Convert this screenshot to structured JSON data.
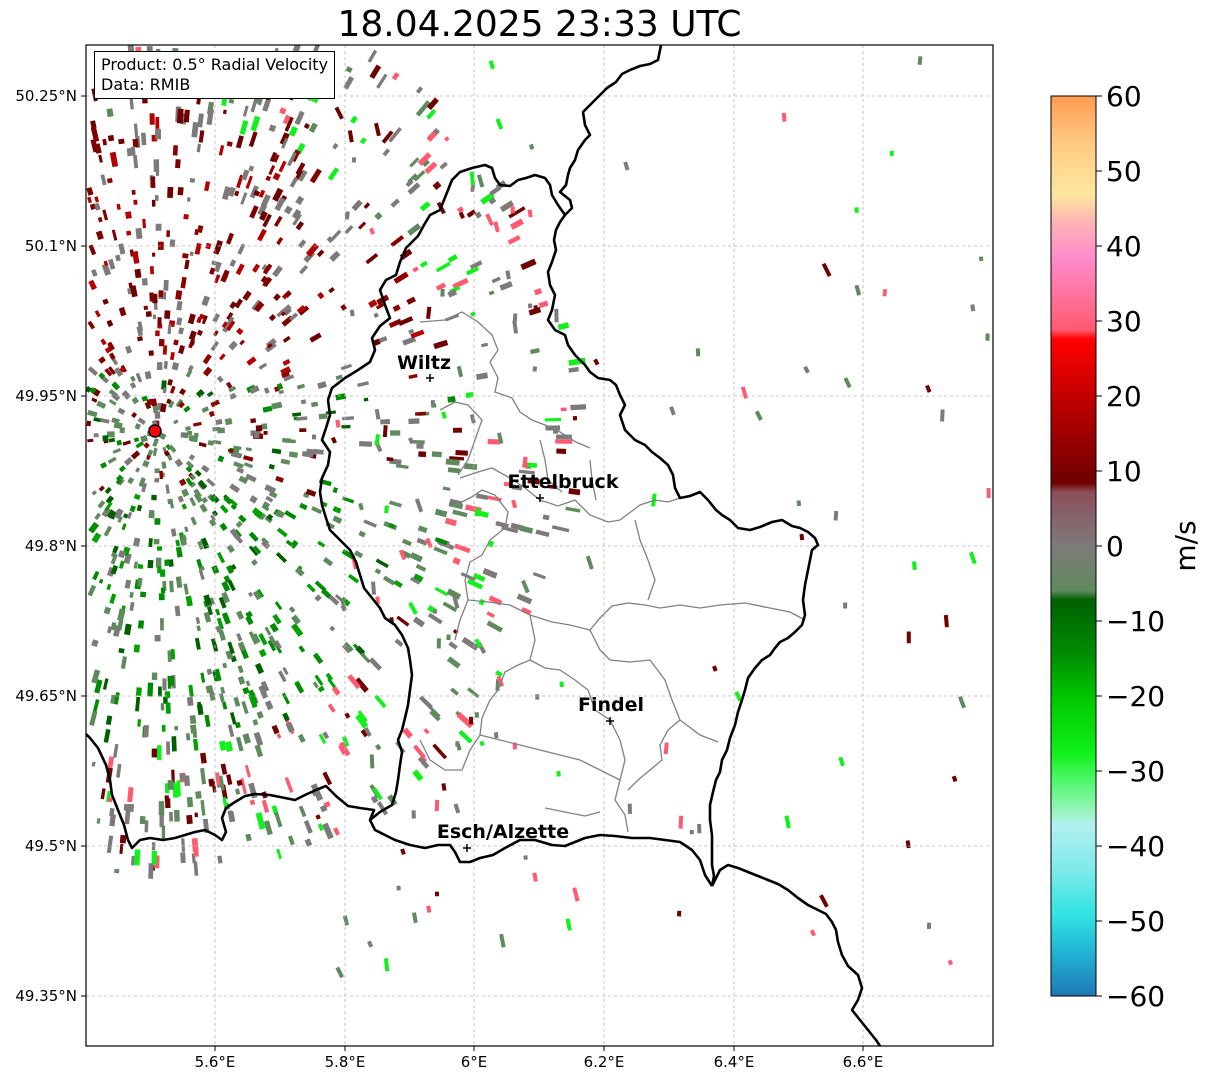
{
  "title": "18.04.2025 23:33 UTC",
  "info": {
    "product": "Product: 0.5° Radial Velocity",
    "data": "Data: RMIB"
  },
  "map": {
    "lon_range": [
      5.4,
      6.8
    ],
    "lat_range": [
      49.3,
      50.3
    ],
    "lon_ticks": [
      "5.6°E",
      "5.8°E",
      "6°E",
      "6.2°E",
      "6.4°E",
      "6.6°E"
    ],
    "lat_ticks": [
      "49.35°N",
      "49.5°N",
      "49.65°N",
      "49.8°N",
      "49.95°N",
      "50.1°N",
      "50.25°N"
    ],
    "radar_site": {
      "lon": 5.505,
      "lat": 49.915
    },
    "cities": [
      {
        "name": "Wiltz",
        "lon": 5.93,
        "lat": 49.965
      },
      {
        "name": "Ettelbruck",
        "lon": 6.1,
        "lat": 49.85
      },
      {
        "name": "Findel",
        "lon": 6.21,
        "lat": 49.627
      },
      {
        "name": "Esch/Alzette",
        "lon": 5.99,
        "lat": 49.5
      }
    ]
  },
  "colorbar": {
    "ticks": [
      "60",
      "50",
      "40",
      "30",
      "20",
      "10",
      "0",
      "−10",
      "−20",
      "−30",
      "−40",
      "−50",
      "−60"
    ],
    "label": "m/s",
    "range": [
      -60,
      60
    ],
    "stops": [
      "#1f77b4",
      "#22b5d4",
      "#31e3e3",
      "#7eeaea",
      "#b3f0f0",
      "#8ff5b0",
      "#4ef86a",
      "#10f01a",
      "#00c800",
      "#008c00",
      "#006000",
      "#5e8a5e",
      "#7e7a7a",
      "#8c4e5a",
      "#6e0000",
      "#b40000",
      "#ff0000",
      "#ff5a70",
      "#ff8ccc",
      "#ffb4b4",
      "#ffe6a0",
      "#ffc880",
      "#ff9a50"
    ]
  }
}
